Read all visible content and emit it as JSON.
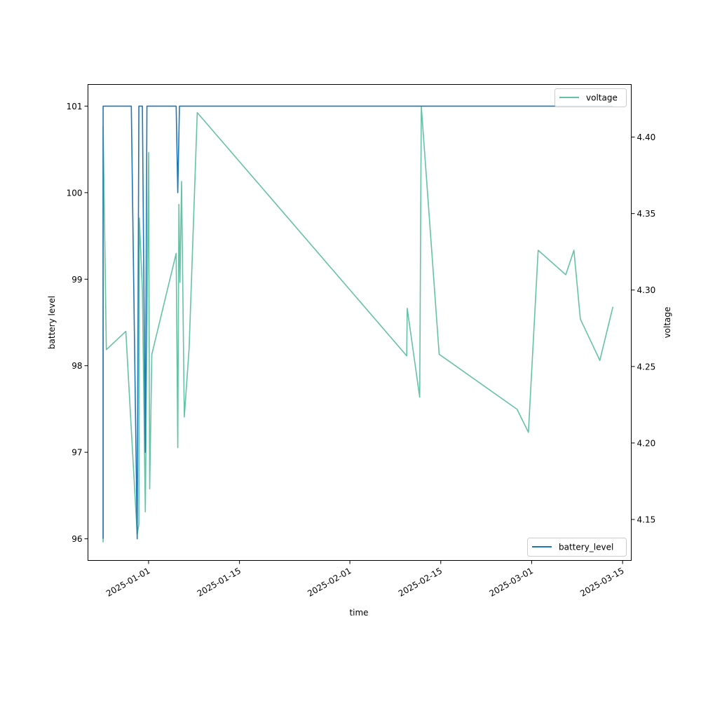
{
  "chart_data": {
    "type": "line",
    "xlabel": "time",
    "ylabel_left": "battery level",
    "ylabel_right": "voltage",
    "x_ticks": [
      "2025-01-01",
      "2025-01-15",
      "2025-02-01",
      "2025-02-15",
      "2025-03-01",
      "2025-03-15"
    ],
    "y_left_ticks": [
      96,
      97,
      98,
      99,
      100,
      101
    ],
    "y_right_ticks": [
      "4.15",
      "4.20",
      "4.25",
      "4.30",
      "4.35",
      "4.40"
    ],
    "x_range": [
      "2024-12-22T16:00",
      "2025-03-16T08:00"
    ],
    "y_left_range": [
      95.75,
      101.25
    ],
    "y_right_range": [
      4.1232,
      4.4344
    ],
    "grid": false,
    "series": [
      {
        "name": "battery_level",
        "axis": "left",
        "color": "#1f77b4",
        "legend_position": "lower right",
        "points": [
          [
            "2024-12-25T00:00",
            96
          ],
          [
            "2024-12-25T00:00",
            101
          ],
          [
            "2024-12-29T08:00",
            101
          ],
          [
            "2024-12-30T06:00",
            96
          ],
          [
            "2024-12-30T12:00",
            101
          ],
          [
            "2024-12-31T01:00",
            101
          ],
          [
            "2024-12-31T12:00",
            97
          ],
          [
            "2024-12-31T18:00",
            101
          ],
          [
            "2025-01-05T06:00",
            101
          ],
          [
            "2025-01-05T12:00",
            100
          ],
          [
            "2025-01-05T18:00",
            101
          ],
          [
            "2025-03-13T12:00",
            101
          ]
        ]
      },
      {
        "name": "voltage",
        "axis": "right",
        "color": "#66c2a5",
        "legend_position": "upper right",
        "points": [
          [
            "2024-12-25T00:00",
            4.135
          ],
          [
            "2024-12-25T00:00",
            4.407
          ],
          [
            "2024-12-25T12:00",
            4.261
          ],
          [
            "2024-12-28T12:00",
            4.273
          ],
          [
            "2024-12-30T06:00",
            4.14
          ],
          [
            "2024-12-30T12:00",
            4.147
          ],
          [
            "2024-12-30T14:00",
            4.347
          ],
          [
            "2024-12-31T01:00",
            4.3
          ],
          [
            "2024-12-31T12:00",
            4.155
          ],
          [
            "2025-01-01T00:00",
            4.39
          ],
          [
            "2025-01-01T04:00",
            4.17
          ],
          [
            "2025-01-01T12:00",
            4.258
          ],
          [
            "2025-01-05T06:00",
            4.324
          ],
          [
            "2025-01-05T12:00",
            4.197
          ],
          [
            "2025-01-05T16:00",
            4.356
          ],
          [
            "2025-01-05T20:00",
            4.305
          ],
          [
            "2025-01-06T02:00",
            4.371
          ],
          [
            "2025-01-06T12:00",
            4.217
          ],
          [
            "2025-01-07T06:00",
            4.262
          ],
          [
            "2025-01-08T12:00",
            4.416
          ],
          [
            "2025-02-09T18:00",
            4.257
          ],
          [
            "2025-02-09T20:00",
            4.288
          ],
          [
            "2025-02-11T18:00",
            4.23
          ],
          [
            "2025-02-12T00:00",
            4.42
          ],
          [
            "2025-02-14T18:00",
            4.258
          ],
          [
            "2025-02-26T18:00",
            4.222
          ],
          [
            "2025-02-28T12:00",
            4.207
          ],
          [
            "2025-03-02T00:00",
            4.326
          ],
          [
            "2025-03-06T06:00",
            4.31
          ],
          [
            "2025-03-07T12:00",
            4.326
          ],
          [
            "2025-03-08T12:00",
            4.281
          ],
          [
            "2025-03-11T12:00",
            4.254
          ],
          [
            "2025-03-13T12:00",
            4.289
          ]
        ]
      }
    ]
  }
}
